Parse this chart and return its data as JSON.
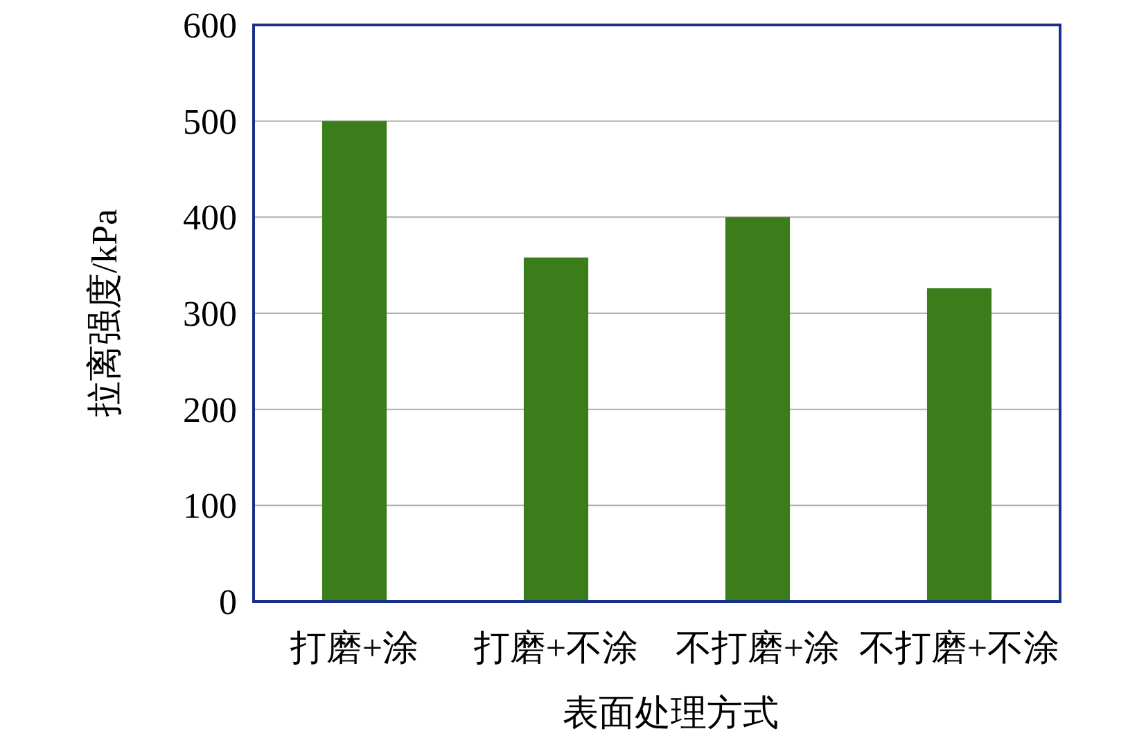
{
  "chart_data": {
    "type": "bar",
    "xlabel": "表面处理方式",
    "ylabel": "拉离强度/kPa",
    "categories": [
      "打磨+涂",
      "打磨+不涂",
      "不打磨+涂",
      "不打磨+不涂"
    ],
    "values": [
      500,
      358,
      400,
      326
    ],
    "color": "#3a7d1a",
    "ylim": [
      0,
      600
    ],
    "yticks": [
      0,
      100,
      200,
      300,
      400,
      500,
      600
    ],
    "grid": "y"
  }
}
